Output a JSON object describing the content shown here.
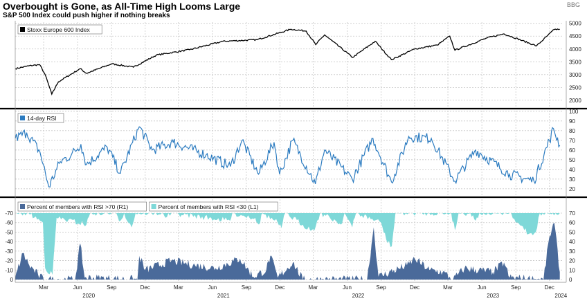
{
  "header": {
    "title": "Overbought is Gone, as All-Time High Looms Large",
    "subtitle": "S&P 500 Index could push higher if nothing breaks",
    "corner_mark": "BBG"
  },
  "chart_data": [
    {
      "type": "line",
      "series": [
        {
          "name": "Stoxx Europe 600 Index",
          "color": "#000000"
        }
      ],
      "y_ticks": [
        2000,
        2500,
        3000,
        3500,
        4000,
        4500,
        5000
      ],
      "ylim": [
        1700,
        5100
      ],
      "anchors": [
        [
          "2019-12-15",
          3230
        ],
        [
          "2020-01-20",
          3340
        ],
        [
          "2020-02-19",
          3390
        ],
        [
          "2020-03-05",
          3000
        ],
        [
          "2020-03-23",
          2240
        ],
        [
          "2020-04-10",
          2720
        ],
        [
          "2020-06-08",
          3230
        ],
        [
          "2020-06-25",
          3050
        ],
        [
          "2020-09-01",
          3420
        ],
        [
          "2020-10-30",
          3290
        ],
        [
          "2020-12-31",
          3760
        ],
        [
          "2021-03-31",
          3970
        ],
        [
          "2021-06-30",
          4300
        ],
        [
          "2021-09-30",
          4360
        ],
        [
          "2021-12-31",
          4770
        ],
        [
          "2022-02-10",
          4700
        ],
        [
          "2022-03-08",
          4170
        ],
        [
          "2022-04-01",
          4550
        ],
        [
          "2022-06-16",
          3670
        ],
        [
          "2022-08-16",
          4300
        ],
        [
          "2022-09-29",
          3580
        ],
        [
          "2022-12-01",
          4000
        ],
        [
          "2023-01-31",
          4150
        ],
        [
          "2023-03-06",
          4500
        ],
        [
          "2023-03-20",
          3950
        ],
        [
          "2023-06-15",
          4430
        ],
        [
          "2023-07-31",
          4590
        ],
        [
          "2023-10-27",
          4120
        ],
        [
          "2023-12-14",
          4760
        ],
        [
          "2023-12-29",
          4770
        ]
      ]
    },
    {
      "type": "line",
      "series": [
        {
          "name": "14-day RSI",
          "color": "#2b7bc0"
        }
      ],
      "y_ticks": [
        20,
        30,
        40,
        50,
        60,
        70,
        80,
        90,
        100
      ],
      "ylim": [
        12,
        102
      ],
      "anchors": [
        [
          "2019-12-15",
          72
        ],
        [
          "2020-01-15",
          78
        ],
        [
          "2020-02-20",
          58
        ],
        [
          "2020-03-15",
          22
        ],
        [
          "2020-04-15",
          48
        ],
        [
          "2020-05-15",
          55
        ],
        [
          "2020-06-10",
          66
        ],
        [
          "2020-06-25",
          45
        ],
        [
          "2020-08-20",
          63
        ],
        [
          "2020-09-25",
          36
        ],
        [
          "2020-11-15",
          84
        ],
        [
          "2020-12-20",
          60
        ],
        [
          "2021-02-15",
          68
        ],
        [
          "2021-05-15",
          55
        ],
        [
          "2021-07-20",
          43
        ],
        [
          "2021-08-20",
          70
        ],
        [
          "2021-10-04",
          35
        ],
        [
          "2021-11-15",
          68
        ],
        [
          "2021-11-30",
          35
        ],
        [
          "2022-01-05",
          70
        ],
        [
          "2022-03-07",
          25
        ],
        [
          "2022-04-01",
          60
        ],
        [
          "2022-06-15",
          30
        ],
        [
          "2022-08-10",
          72
        ],
        [
          "2022-09-29",
          27
        ],
        [
          "2022-11-15",
          74
        ],
        [
          "2023-01-15",
          72
        ],
        [
          "2023-03-20",
          28
        ],
        [
          "2023-05-15",
          60
        ],
        [
          "2023-08-15",
          35
        ],
        [
          "2023-10-20",
          28
        ],
        [
          "2023-12-01",
          70
        ],
        [
          "2023-12-12",
          82
        ],
        [
          "2023-12-29",
          65
        ]
      ]
    },
    {
      "type": "area",
      "series": [
        {
          "name": "Percent of members with RSI >70 (R1)",
          "color": "#4a6a9a",
          "axis": "right"
        },
        {
          "name": "Percent of members with RSI <30 (L1)",
          "color": "#7ed8d8",
          "axis": "left"
        }
      ],
      "y_ticks_left": [
        0,
        -10,
        -20,
        -30,
        -40,
        -50,
        -60,
        -70
      ],
      "y_ticks_right": [
        0,
        10,
        20,
        30,
        40,
        50,
        60,
        70
      ],
      "ylim_right": [
        0,
        70
      ],
      "overbought_anchors": [
        [
          "2019-12-15",
          2
        ],
        [
          "2020-01-05",
          28
        ],
        [
          "2020-01-22",
          15
        ],
        [
          "2020-02-15",
          5
        ],
        [
          "2020-03-01",
          0
        ],
        [
          "2020-05-25",
          0
        ],
        [
          "2020-06-08",
          38
        ],
        [
          "2020-06-20",
          2
        ],
        [
          "2020-11-10",
          0
        ],
        [
          "2020-11-15",
          25
        ],
        [
          "2020-12-01",
          10
        ],
        [
          "2021-02-10",
          20
        ],
        [
          "2021-04-15",
          15
        ],
        [
          "2021-06-10",
          12
        ],
        [
          "2021-08-15",
          22
        ],
        [
          "2021-09-20",
          3
        ],
        [
          "2021-10-25",
          10
        ],
        [
          "2021-11-05",
          25
        ],
        [
          "2021-11-25",
          2
        ],
        [
          "2022-01-05",
          18
        ],
        [
          "2022-02-01",
          0
        ],
        [
          "2022-07-25",
          0
        ],
        [
          "2022-08-12",
          55
        ],
        [
          "2022-08-25",
          3
        ],
        [
          "2022-11-10",
          15
        ],
        [
          "2022-12-01",
          22
        ],
        [
          "2023-01-10",
          10
        ],
        [
          "2023-02-15",
          8
        ],
        [
          "2023-03-15",
          0
        ],
        [
          "2023-04-15",
          12
        ],
        [
          "2023-07-01",
          8
        ],
        [
          "2023-07-31",
          18
        ],
        [
          "2023-08-15",
          2
        ],
        [
          "2023-11-15",
          0
        ],
        [
          "2023-12-01",
          45
        ],
        [
          "2023-12-14",
          60
        ],
        [
          "2023-12-29",
          8
        ]
      ],
      "oversold_anchors": [
        [
          "2019-12-15",
          0
        ],
        [
          "2020-01-20",
          0
        ],
        [
          "2020-02-28",
          10
        ],
        [
          "2020-03-05",
          58
        ],
        [
          "2020-03-25",
          65
        ],
        [
          "2020-04-05",
          5
        ],
        [
          "2020-06-25",
          12
        ],
        [
          "2020-07-05",
          0
        ],
        [
          "2020-09-10",
          0
        ],
        [
          "2020-09-25",
          8
        ],
        [
          "2020-10-05",
          0
        ],
        [
          "2020-10-25",
          15
        ],
        [
          "2020-11-05",
          0
        ],
        [
          "2021-01-15",
          0
        ],
        [
          "2021-01-29",
          4
        ],
        [
          "2021-02-10",
          0
        ],
        [
          "2021-07-19",
          8
        ],
        [
          "2021-07-25",
          0
        ],
        [
          "2021-09-25",
          5
        ],
        [
          "2021-10-05",
          12
        ],
        [
          "2021-10-15",
          0
        ],
        [
          "2021-11-25",
          10
        ],
        [
          "2021-12-05",
          16
        ],
        [
          "2021-12-15",
          0
        ],
        [
          "2022-02-25",
          18
        ],
        [
          "2022-03-08",
          14
        ],
        [
          "2022-03-20",
          0
        ],
        [
          "2022-05-01",
          8
        ],
        [
          "2022-05-15",
          12
        ],
        [
          "2022-05-25",
          0
        ],
        [
          "2022-06-15",
          15
        ],
        [
          "2022-06-25",
          0
        ],
        [
          "2022-09-01",
          10
        ],
        [
          "2022-09-15",
          28
        ],
        [
          "2022-09-30",
          35
        ],
        [
          "2022-10-10",
          0
        ],
        [
          "2023-03-10",
          0
        ],
        [
          "2023-03-20",
          18
        ],
        [
          "2023-03-30",
          0
        ],
        [
          "2023-05-01",
          0
        ],
        [
          "2023-05-15",
          8
        ],
        [
          "2023-05-25",
          0
        ],
        [
          "2023-08-15",
          0
        ],
        [
          "2023-09-01",
          10
        ],
        [
          "2023-09-20",
          14
        ],
        [
          "2023-10-05",
          22
        ],
        [
          "2023-10-25",
          20
        ],
        [
          "2023-11-05",
          0
        ],
        [
          "2023-12-29",
          0
        ]
      ]
    }
  ],
  "x_axis": {
    "months": [
      {
        "label": "Mar",
        "date": "2020-03-01"
      },
      {
        "label": "Jun",
        "date": "2020-06-01"
      },
      {
        "label": "Sep",
        "date": "2020-09-01"
      },
      {
        "label": "Dec",
        "date": "2020-12-01"
      },
      {
        "label": "Mar",
        "date": "2021-03-01"
      },
      {
        "label": "Jun",
        "date": "2021-06-01"
      },
      {
        "label": "Sep",
        "date": "2021-09-01"
      },
      {
        "label": "Dec",
        "date": "2021-12-01"
      },
      {
        "label": "Mar",
        "date": "2022-03-01"
      },
      {
        "label": "Jun",
        "date": "2022-06-01"
      },
      {
        "label": "Sep",
        "date": "2022-09-01"
      },
      {
        "label": "Dec",
        "date": "2022-12-01"
      },
      {
        "label": "Mar",
        "date": "2023-03-01"
      },
      {
        "label": "Jun",
        "date": "2023-06-01"
      },
      {
        "label": "Sep",
        "date": "2023-09-01"
      },
      {
        "label": "Dec",
        "date": "2023-12-01"
      }
    ],
    "years": [
      {
        "label": "2020",
        "date": "2020-07-01"
      },
      {
        "label": "2021",
        "date": "2021-07-01"
      },
      {
        "label": "2022",
        "date": "2022-07-01"
      },
      {
        "label": "2023",
        "date": "2023-07-01"
      },
      {
        "label": "2024",
        "date": "2024-01-01"
      }
    ],
    "range": [
      "2019-12-15",
      "2024-01-08"
    ]
  }
}
